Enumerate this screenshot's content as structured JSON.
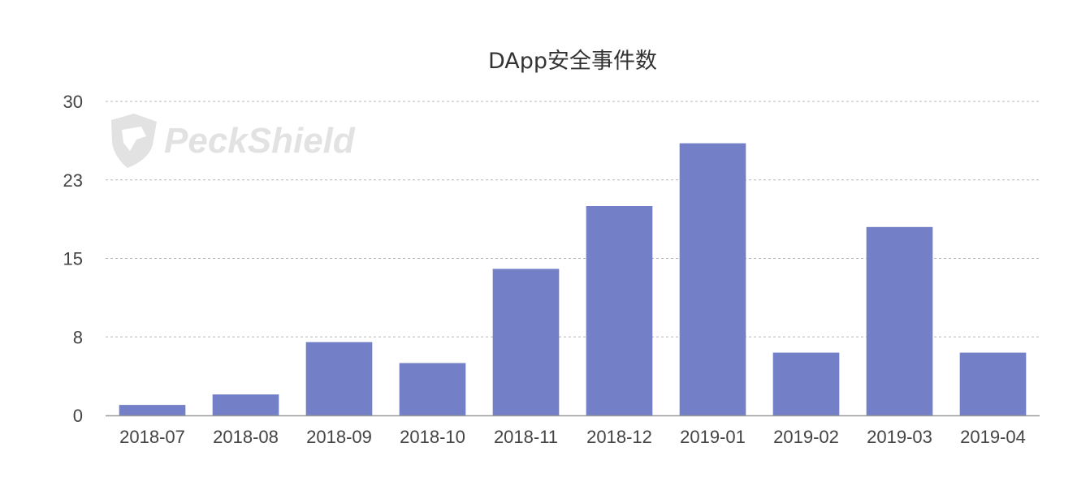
{
  "chart_data": {
    "type": "bar",
    "title": "DApp安全事件数",
    "categories": [
      "2018-07",
      "2018-08",
      "2018-09",
      "2018-10",
      "2018-11",
      "2018-12",
      "2019-01",
      "2019-02",
      "2019-03",
      "2019-04"
    ],
    "values": [
      1,
      2,
      7,
      5,
      14,
      20,
      26,
      6,
      18,
      6
    ],
    "y_ticks": [
      "0",
      "8",
      "15",
      "23",
      "30"
    ],
    "ylim": [
      0,
      30
    ],
    "grid": true,
    "bar_color": "#737fc6"
  },
  "watermark": {
    "text": "PeckShield",
    "icon": "shield-icon"
  }
}
